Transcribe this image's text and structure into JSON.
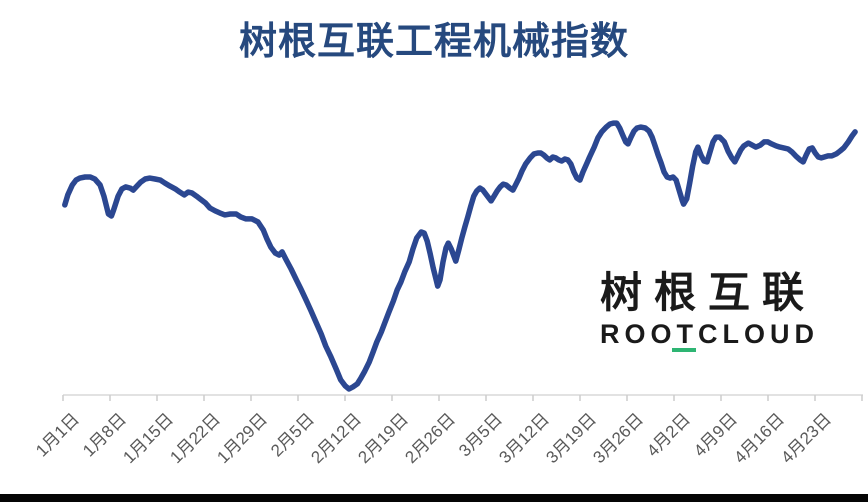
{
  "title": "树根互联工程机械指数",
  "logo": {
    "cn": "树根互联",
    "en": "ROOTCLOUD"
  },
  "colors": {
    "line": "#2B4791",
    "title": "#26497E",
    "axis_line": "#D9D9D9",
    "tick": "#CCCCCC",
    "tick_label": "#595959",
    "logo_text": "#1A1A1A",
    "logo_accent_green": "#2EB573",
    "bottom_bar": "#050505",
    "background": "#FFFFFF"
  },
  "chart_data": {
    "type": "line",
    "title": "树根互联工程机械指数",
    "xlabel": "",
    "ylabel": "",
    "ylim": [
      0,
      100
    ],
    "grid": false,
    "legend": "none",
    "x_tick_labels": [
      "1月1日",
      "1月8日",
      "1月15日",
      "1月22日",
      "1月29日",
      "2月5日",
      "2月12日",
      "2月19日",
      "2月26日",
      "3月5日",
      "3月12日",
      "3月19日",
      "3月26日",
      "4月2日",
      "4月9日",
      "4月16日",
      "4月23日"
    ],
    "series": [
      {
        "name": "工程机械指数",
        "points": [
          [
            0.001,
            66.7
          ],
          [
            0.005,
            70.2
          ],
          [
            0.011,
            73.7
          ],
          [
            0.016,
            75.4
          ],
          [
            0.021,
            76.1
          ],
          [
            0.028,
            76.5
          ],
          [
            0.035,
            76.5
          ],
          [
            0.041,
            75.8
          ],
          [
            0.048,
            73.7
          ],
          [
            0.053,
            69.8
          ],
          [
            0.059,
            63.5
          ],
          [
            0.063,
            62.8
          ],
          [
            0.066,
            64.9
          ],
          [
            0.072,
            69.8
          ],
          [
            0.077,
            72.3
          ],
          [
            0.082,
            73.0
          ],
          [
            0.088,
            72.6
          ],
          [
            0.092,
            71.9
          ],
          [
            0.097,
            73.3
          ],
          [
            0.102,
            74.7
          ],
          [
            0.108,
            75.8
          ],
          [
            0.114,
            76.1
          ],
          [
            0.121,
            75.8
          ],
          [
            0.128,
            75.4
          ],
          [
            0.134,
            74.4
          ],
          [
            0.141,
            73.3
          ],
          [
            0.148,
            72.3
          ],
          [
            0.154,
            71.2
          ],
          [
            0.16,
            70.2
          ],
          [
            0.165,
            71.2
          ],
          [
            0.17,
            70.9
          ],
          [
            0.176,
            69.8
          ],
          [
            0.181,
            68.8
          ],
          [
            0.188,
            67.4
          ],
          [
            0.194,
            65.6
          ],
          [
            0.201,
            64.6
          ],
          [
            0.207,
            63.9
          ],
          [
            0.214,
            63.2
          ],
          [
            0.221,
            63.5
          ],
          [
            0.229,
            63.5
          ],
          [
            0.235,
            62.5
          ],
          [
            0.242,
            61.8
          ],
          [
            0.25,
            61.8
          ],
          [
            0.258,
            60.7
          ],
          [
            0.265,
            57.9
          ],
          [
            0.27,
            54.7
          ],
          [
            0.275,
            51.9
          ],
          [
            0.281,
            49.8
          ],
          [
            0.286,
            49.1
          ],
          [
            0.29,
            50.2
          ],
          [
            0.295,
            47.7
          ],
          [
            0.302,
            44.2
          ],
          [
            0.309,
            40.4
          ],
          [
            0.315,
            37.2
          ],
          [
            0.322,
            33.3
          ],
          [
            0.328,
            29.8
          ],
          [
            0.335,
            25.6
          ],
          [
            0.342,
            21.4
          ],
          [
            0.348,
            17.2
          ],
          [
            0.355,
            13.3
          ],
          [
            0.362,
            9.1
          ],
          [
            0.368,
            5.3
          ],
          [
            0.374,
            3.2
          ],
          [
            0.379,
            2.1
          ],
          [
            0.384,
            2.8
          ],
          [
            0.39,
            3.9
          ],
          [
            0.395,
            6.0
          ],
          [
            0.4,
            8.4
          ],
          [
            0.406,
            11.6
          ],
          [
            0.411,
            15.1
          ],
          [
            0.416,
            18.6
          ],
          [
            0.422,
            22.1
          ],
          [
            0.427,
            25.6
          ],
          [
            0.432,
            29.1
          ],
          [
            0.438,
            33.0
          ],
          [
            0.443,
            36.8
          ],
          [
            0.448,
            39.6
          ],
          [
            0.453,
            43.2
          ],
          [
            0.459,
            46.7
          ],
          [
            0.464,
            51.2
          ],
          [
            0.469,
            55.1
          ],
          [
            0.475,
            57.2
          ],
          [
            0.479,
            56.8
          ],
          [
            0.483,
            54.0
          ],
          [
            0.487,
            49.5
          ],
          [
            0.491,
            44.6
          ],
          [
            0.495,
            40.4
          ],
          [
            0.497,
            38.2
          ],
          [
            0.5,
            40.4
          ],
          [
            0.504,
            46.7
          ],
          [
            0.508,
            51.6
          ],
          [
            0.511,
            53.3
          ],
          [
            0.515,
            51.2
          ],
          [
            0.519,
            48.4
          ],
          [
            0.521,
            47.0
          ],
          [
            0.525,
            50.9
          ],
          [
            0.529,
            55.1
          ],
          [
            0.533,
            58.9
          ],
          [
            0.537,
            62.5
          ],
          [
            0.541,
            66.3
          ],
          [
            0.545,
            69.8
          ],
          [
            0.549,
            71.6
          ],
          [
            0.553,
            72.6
          ],
          [
            0.557,
            71.9
          ],
          [
            0.563,
            69.8
          ],
          [
            0.568,
            68.1
          ],
          [
            0.572,
            69.8
          ],
          [
            0.576,
            71.6
          ],
          [
            0.58,
            73.0
          ],
          [
            0.584,
            74.0
          ],
          [
            0.588,
            73.7
          ],
          [
            0.593,
            72.6
          ],
          [
            0.597,
            71.9
          ],
          [
            0.601,
            74.0
          ],
          [
            0.605,
            76.1
          ],
          [
            0.609,
            78.6
          ],
          [
            0.614,
            81.1
          ],
          [
            0.62,
            83.2
          ],
          [
            0.625,
            84.6
          ],
          [
            0.63,
            84.9
          ],
          [
            0.634,
            84.9
          ],
          [
            0.638,
            84.2
          ],
          [
            0.642,
            83.2
          ],
          [
            0.646,
            82.5
          ],
          [
            0.65,
            83.5
          ],
          [
            0.654,
            83.2
          ],
          [
            0.658,
            82.5
          ],
          [
            0.662,
            82.1
          ],
          [
            0.666,
            82.8
          ],
          [
            0.67,
            82.5
          ],
          [
            0.674,
            81.1
          ],
          [
            0.678,
            78.2
          ],
          [
            0.682,
            76.1
          ],
          [
            0.686,
            75.4
          ],
          [
            0.69,
            78.2
          ],
          [
            0.695,
            81.1
          ],
          [
            0.699,
            83.5
          ],
          [
            0.705,
            87.0
          ],
          [
            0.71,
            90.2
          ],
          [
            0.715,
            92.3
          ],
          [
            0.721,
            94.0
          ],
          [
            0.726,
            95.1
          ],
          [
            0.731,
            95.4
          ],
          [
            0.735,
            95.4
          ],
          [
            0.739,
            93.7
          ],
          [
            0.743,
            91.2
          ],
          [
            0.747,
            88.8
          ],
          [
            0.75,
            88.1
          ],
          [
            0.754,
            90.5
          ],
          [
            0.758,
            92.6
          ],
          [
            0.762,
            93.7
          ],
          [
            0.767,
            94.0
          ],
          [
            0.773,
            93.7
          ],
          [
            0.778,
            92.6
          ],
          [
            0.782,
            90.5
          ],
          [
            0.786,
            87.4
          ],
          [
            0.79,
            84.2
          ],
          [
            0.794,
            81.4
          ],
          [
            0.798,
            78.2
          ],
          [
            0.802,
            76.5
          ],
          [
            0.806,
            76.1
          ],
          [
            0.81,
            76.5
          ],
          [
            0.814,
            75.4
          ],
          [
            0.818,
            71.9
          ],
          [
            0.822,
            68.4
          ],
          [
            0.824,
            67.0
          ],
          [
            0.828,
            68.8
          ],
          [
            0.832,
            74.4
          ],
          [
            0.836,
            80.4
          ],
          [
            0.84,
            85.3
          ],
          [
            0.843,
            87.0
          ],
          [
            0.847,
            84.2
          ],
          [
            0.851,
            82.1
          ],
          [
            0.855,
            81.8
          ],
          [
            0.859,
            85.3
          ],
          [
            0.863,
            88.8
          ],
          [
            0.867,
            90.5
          ],
          [
            0.872,
            90.5
          ],
          [
            0.878,
            88.8
          ],
          [
            0.883,
            85.6
          ],
          [
            0.888,
            83.2
          ],
          [
            0.892,
            81.8
          ],
          [
            0.896,
            83.9
          ],
          [
            0.9,
            86.0
          ],
          [
            0.904,
            87.4
          ],
          [
            0.91,
            88.4
          ],
          [
            0.915,
            87.7
          ],
          [
            0.92,
            87.0
          ],
          [
            0.926,
            87.7
          ],
          [
            0.931,
            88.8
          ],
          [
            0.936,
            88.8
          ],
          [
            0.941,
            88.1
          ],
          [
            0.947,
            87.4
          ],
          [
            0.952,
            87.0
          ],
          [
            0.957,
            86.7
          ],
          [
            0.963,
            86.3
          ],
          [
            0.968,
            85.3
          ],
          [
            0.973,
            83.9
          ],
          [
            0.979,
            82.5
          ],
          [
            0.983,
            81.8
          ],
          [
            0.987,
            84.2
          ],
          [
            0.991,
            86.3
          ],
          [
            0.995,
            86.7
          ],
          [
            0.999,
            84.9
          ],
          [
            1.003,
            83.5
          ],
          [
            1.007,
            83.2
          ],
          [
            1.011,
            83.5
          ],
          [
            1.016,
            83.9
          ],
          [
            1.021,
            83.9
          ],
          [
            1.027,
            84.6
          ],
          [
            1.032,
            85.6
          ],
          [
            1.037,
            86.7
          ],
          [
            1.043,
            88.8
          ],
          [
            1.048,
            90.9
          ],
          [
            1.052,
            92.3
          ]
        ]
      }
    ]
  }
}
